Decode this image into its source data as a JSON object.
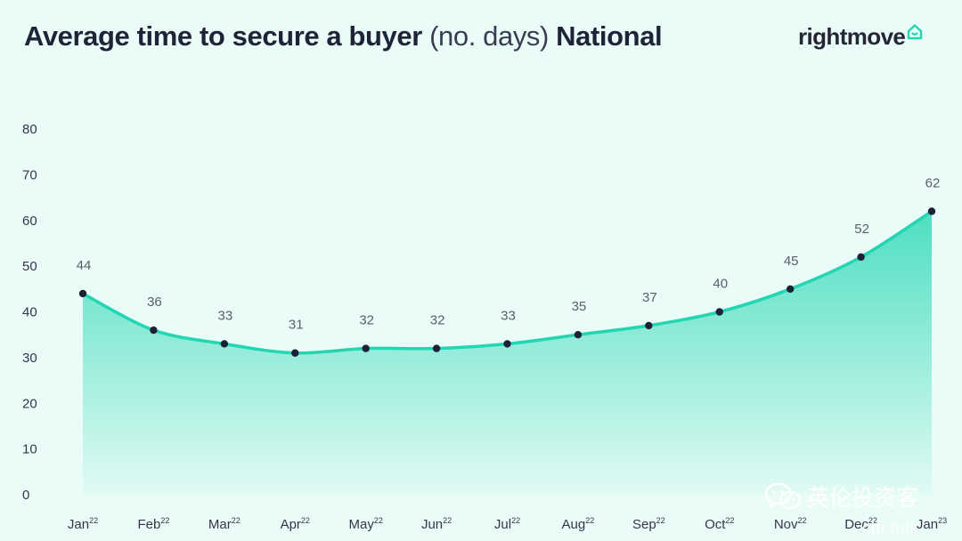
{
  "header": {
    "title_part1": "Average time to secure a buyer",
    "title_part2": "(no. days)",
    "title_part3": "National"
  },
  "brand": {
    "logo_text": "rightmove",
    "logo_icon": "house-icon",
    "accent_color": "#22d6b2"
  },
  "watermark": {
    "text": "英伦投资客",
    "icon": "wechat-icon",
    "sub_text": "chi nuk"
  },
  "chart_data": {
    "type": "area",
    "categories": [
      "Jan",
      "Feb",
      "Mar",
      "Apr",
      "May",
      "Jun",
      "Jul",
      "Aug",
      "Sep",
      "Oct",
      "Nov",
      "Dec",
      "Jan"
    ],
    "category_years": [
      "22",
      "22",
      "22",
      "22",
      "22",
      "22",
      "22",
      "22",
      "22",
      "22",
      "22",
      "22",
      "23"
    ],
    "values": [
      44,
      36,
      33,
      31,
      32,
      32,
      33,
      35,
      37,
      40,
      45,
      52,
      62
    ],
    "data_labels": [
      "44",
      "36",
      "33",
      "31",
      "32",
      "32",
      "33",
      "35",
      "37",
      "40",
      "45",
      "52",
      "62"
    ],
    "title": "Average time to secure a buyer (no. days) National",
    "xlabel": "",
    "ylabel": "",
    "ylim": [
      0,
      80
    ],
    "yticks": [
      0,
      10,
      20,
      30,
      40,
      50,
      60,
      70,
      80
    ],
    "grid": false,
    "legend": "none",
    "line_color": "#22d6b2",
    "marker_color": "#1d2137"
  }
}
